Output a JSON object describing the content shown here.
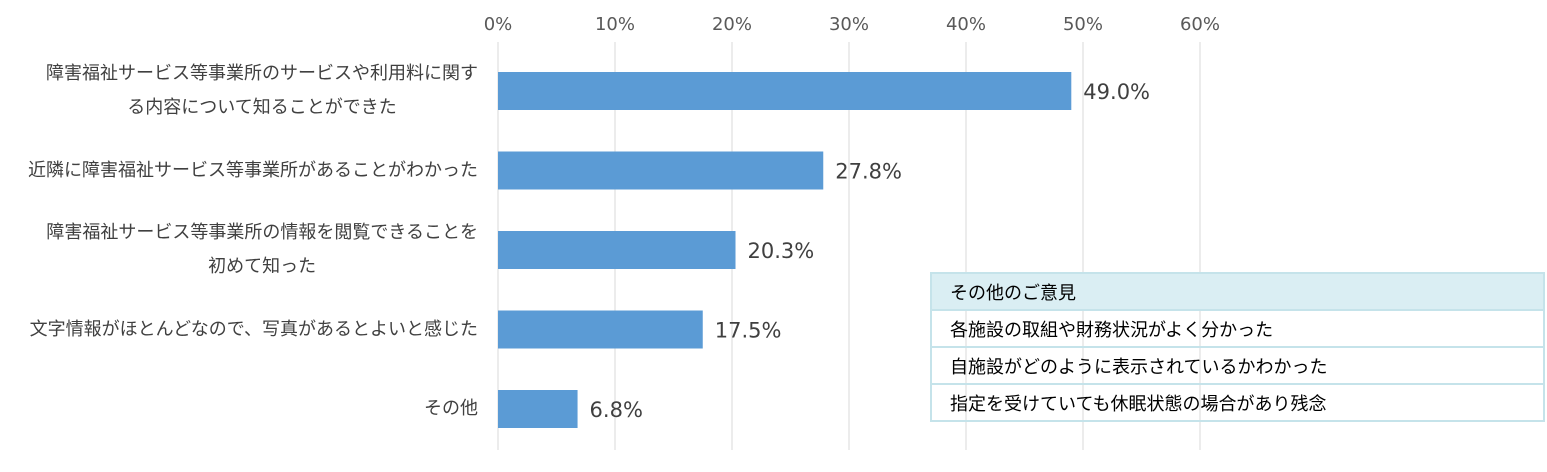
{
  "chart_data": {
    "type": "barh",
    "categories": [
      "障害福祉サービス等事業所のサービスや利用料に関す\nる内容について知ることができた",
      "近隣に障害福祉サービス等事業所があることがわかった",
      "障害福祉サービス等事業所の情報を閲覧できることを\n初めて知った",
      "文字情報がほとんどなので、写真があるとよいと感じた",
      "その他"
    ],
    "values": [
      49.0,
      27.8,
      20.3,
      17.5,
      6.8
    ],
    "value_labels": [
      "49.0%",
      "27.8%",
      "20.3%",
      "17.5%",
      "6.8%"
    ],
    "color": "#5b9bd5",
    "xlim": [
      0,
      60
    ],
    "xticks": [
      {
        "value": 0,
        "label": "0%"
      },
      {
        "value": 10,
        "label": "10%"
      },
      {
        "value": 20,
        "label": "20%"
      },
      {
        "value": 30,
        "label": "30%"
      },
      {
        "value": 40,
        "label": "40%"
      },
      {
        "value": 50,
        "label": "50%"
      },
      {
        "value": 60,
        "label": "60%"
      }
    ],
    "grid": true
  },
  "comments": {
    "header": "その他のご意見",
    "rows": [
      "各施設の取組や財務状況がよく分かった",
      "自施設がどのように表示されているかわかった",
      "指定を受けていても休眠状態の場合があり残念"
    ]
  }
}
